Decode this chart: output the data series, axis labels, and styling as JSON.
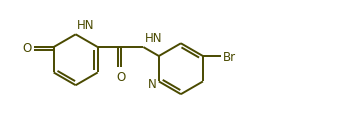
{
  "line_color": "#4a4a00",
  "bg_color": "#ffffff",
  "line_width": 1.4,
  "font_size": 8.5,
  "fig_width": 3.6,
  "fig_height": 1.15,
  "dpi": 100,
  "xlim": [
    -0.5,
    10.5
  ],
  "ylim": [
    -1.0,
    2.2
  ]
}
